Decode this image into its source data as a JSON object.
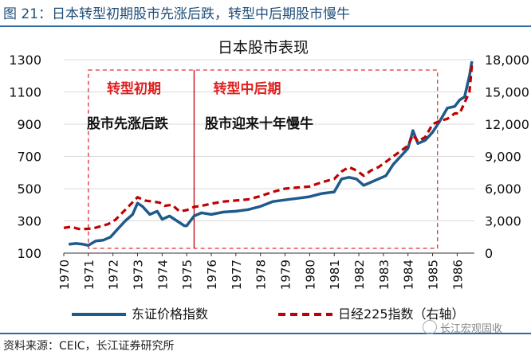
{
  "header": {
    "title": "图 21：日本转型初期股市先涨后跌，转型中后期股市慢牛"
  },
  "footer": {
    "source": "资料来源：CEIC，长江证券研究所",
    "watermark": "长江宏观固收"
  },
  "chart_data": {
    "type": "line",
    "title": "日本股市表现",
    "x_ticks": [
      "1970",
      "1971",
      "1972",
      "1973",
      "1974",
      "1975",
      "1976",
      "1977",
      "1978",
      "1979",
      "1980",
      "1981",
      "1982",
      "1983",
      "1984",
      "1985",
      "1986"
    ],
    "x_range": [
      1970,
      1986.7
    ],
    "y_left": {
      "ticks": [
        "100",
        "300",
        "500",
        "700",
        "900",
        "1100",
        "1300"
      ],
      "range": [
        100,
        1300
      ]
    },
    "y_right": {
      "ticks": [
        "0",
        "3,000",
        "6,000",
        "9,000",
        "12,000",
        "15,000",
        "18,000"
      ],
      "range": [
        0,
        18000
      ]
    },
    "annotations": {
      "phase1_label": "转型初期",
      "phase2_label": "转型中后期",
      "phase1_note": "股市先涨后跌",
      "phase2_note": "股市迎来十年慢牛",
      "phase1_range": [
        1971.0,
        1975.3
      ],
      "phase2_range": [
        1975.3,
        1985.2
      ],
      "divider_year": 1975.3
    },
    "series": [
      {
        "name": "东证价格指数",
        "axis": "left",
        "color": "#1f5a8c",
        "x": [
          1970.2,
          1970.5,
          1970.8,
          1971.0,
          1971.3,
          1971.6,
          1971.9,
          1972.2,
          1972.5,
          1972.8,
          1973.0,
          1973.2,
          1973.5,
          1973.8,
          1974.0,
          1974.3,
          1974.6,
          1974.9,
          1975.0,
          1975.3,
          1975.6,
          1976.0,
          1976.5,
          1977.0,
          1977.5,
          1978.0,
          1978.5,
          1979.0,
          1979.5,
          1980.0,
          1980.5,
          1981.0,
          1981.3,
          1981.6,
          1981.9,
          1982.2,
          1982.5,
          1982.8,
          1983.1,
          1983.4,
          1983.7,
          1984.0,
          1984.2,
          1984.4,
          1984.7,
          1985.0,
          1985.3,
          1985.6,
          1985.9,
          1986.1,
          1986.3,
          1986.5,
          1986.6
        ],
        "values": [
          155,
          160,
          155,
          148,
          175,
          180,
          200,
          250,
          300,
          340,
          410,
          390,
          340,
          360,
          310,
          330,
          300,
          270,
          270,
          330,
          350,
          340,
          355,
          360,
          370,
          390,
          420,
          430,
          440,
          450,
          470,
          480,
          560,
          570,
          560,
          520,
          540,
          560,
          580,
          650,
          700,
          750,
          860,
          780,
          800,
          850,
          920,
          1000,
          1010,
          1050,
          1070,
          1200,
          1290
        ]
      },
      {
        "name": "日经225指数（右轴）",
        "axis": "right",
        "color": "#c00000",
        "x": [
          1970.0,
          1970.3,
          1970.6,
          1970.9,
          1971.2,
          1971.5,
          1971.8,
          1972.1,
          1972.4,
          1972.7,
          1973.0,
          1973.3,
          1973.6,
          1973.9,
          1974.1,
          1974.4,
          1974.7,
          1975.0,
          1975.3,
          1975.6,
          1976.0,
          1976.5,
          1977.0,
          1977.5,
          1978.0,
          1978.5,
          1979.0,
          1979.5,
          1980.0,
          1980.5,
          1981.0,
          1981.3,
          1981.6,
          1981.9,
          1982.2,
          1982.5,
          1982.8,
          1983.1,
          1983.4,
          1983.7,
          1984.0,
          1984.2,
          1984.4,
          1984.7,
          1985.0,
          1985.3,
          1985.6,
          1985.9,
          1986.1,
          1986.3,
          1986.5,
          1986.6
        ],
        "values": [
          2350,
          2450,
          2250,
          2250,
          2300,
          2500,
          2700,
          3100,
          3800,
          4500,
          5200,
          4900,
          4800,
          4700,
          4400,
          4500,
          3900,
          4000,
          4300,
          4400,
          4600,
          4800,
          4900,
          5000,
          5300,
          5700,
          6000,
          6100,
          6200,
          6600,
          6900,
          7600,
          8000,
          7700,
          7200,
          7700,
          8000,
          8500,
          9000,
          9500,
          10000,
          11000,
          10400,
          10800,
          12000,
          12300,
          12500,
          13000,
          13000,
          14000,
          15000,
          17500
        ]
      }
    ]
  }
}
